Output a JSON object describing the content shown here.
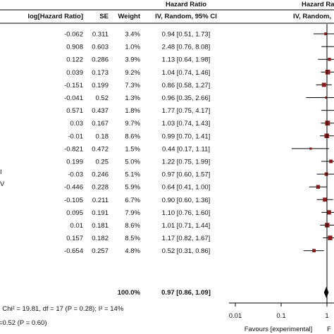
{
  "headers": {
    "loghr": "log[Hazard Ratio]",
    "se": "SE",
    "weight": "Weight",
    "hr_top": "Hazard Ratio",
    "hr_sub": "IV, Random, 95% CI",
    "plot_top": "Hazard Ra",
    "plot_sub": "IV, Random,"
  },
  "left_fragments": [
    "I",
    "V"
  ],
  "rows": [
    {
      "loghr": "-0.062",
      "se": "0.311",
      "weight": "3.4%",
      "hr": "0.94 [0.51, 1.73]"
    },
    {
      "loghr": "0.908",
      "se": "0.603",
      "weight": "1.0%",
      "hr": "2.48 [0.76, 8.08]"
    },
    {
      "loghr": "0.122",
      "se": "0.286",
      "weight": "3.9%",
      "hr": "1.13 [0.64, 1.98]"
    },
    {
      "loghr": "0.039",
      "se": "0.173",
      "weight": "9.2%",
      "hr": "1.04 [0.74, 1.46]"
    },
    {
      "loghr": "-0.151",
      "se": "0.199",
      "weight": "7.3%",
      "hr": "0.86 [0.58, 1.27]"
    },
    {
      "loghr": "-0.041",
      "se": "0.52",
      "weight": "1.3%",
      "hr": "0.96 [0.35, 2.66]"
    },
    {
      "loghr": "0.571",
      "se": "0.437",
      "weight": "1.8%",
      "hr": "1.77 [0.75, 4.17]"
    },
    {
      "loghr": "0.03",
      "se": "0.167",
      "weight": "9.7%",
      "hr": "1.03 [0.74, 1.43]"
    },
    {
      "loghr": "-0.01",
      "se": "0.18",
      "weight": "8.6%",
      "hr": "0.99 [0.70, 1.41]"
    },
    {
      "loghr": "-0.821",
      "se": "0.472",
      "weight": "1.5%",
      "hr": "0.44 [0.17, 1.11]"
    },
    {
      "loghr": "0.199",
      "se": "0.25",
      "weight": "5.0%",
      "hr": "1.22 [0.75, 1.99]"
    },
    {
      "loghr": "-0.03",
      "se": "0.246",
      "weight": "5.1%",
      "hr": "0.97 [0.60, 1.57]"
    },
    {
      "loghr": "-0.446",
      "se": "0.228",
      "weight": "5.9%",
      "hr": "0.64 [0.41, 1.00]"
    },
    {
      "loghr": "-0.105",
      "se": "0.211",
      "weight": "6.7%",
      "hr": "0.90 [0.60, 1.36]"
    },
    {
      "loghr": "0.095",
      "se": "0.191",
      "weight": "7.9%",
      "hr": "1.10 [0.76, 1.60]"
    },
    {
      "loghr": "0.01",
      "se": "0.181",
      "weight": "8.6%",
      "hr": "1.01 [0.71, 1.44]"
    },
    {
      "loghr": "0.157",
      "se": "0.182",
      "weight": "8.5%",
      "hr": "1.17 [0.82, 1.67]"
    },
    {
      "loghr": "-0.654",
      "se": "0.257",
      "weight": "4.8%",
      "hr": "0.52 [0.31, 0.86]"
    }
  ],
  "total": {
    "weight": "100.0%",
    "hr": "0.97 [0.86, 1.09]"
  },
  "heterogeneity": "; Chi² = 19.81, df = 17 (P = 0.28); I² = 14%",
  "overall_effect": "=0.52 (P = 0.60)",
  "axis_ticks": [
    "0.01",
    "0.1",
    "1"
  ],
  "favours_text": "Favours [experimental]",
  "favours_frag": "F",
  "colors": {
    "marker": "#8b1a1a",
    "line": "#000000"
  },
  "chart_data": {
    "type": "forest",
    "x_scale": "log",
    "xlim": [
      0.01,
      100
    ],
    "reference_line": 1,
    "studies": [
      {
        "hr": 0.94,
        "lower": 0.51,
        "upper": 1.73,
        "weight": 3.4
      },
      {
        "hr": 2.48,
        "lower": 0.76,
        "upper": 8.08,
        "weight": 1.0
      },
      {
        "hr": 1.13,
        "lower": 0.64,
        "upper": 1.98,
        "weight": 3.9
      },
      {
        "hr": 1.04,
        "lower": 0.74,
        "upper": 1.46,
        "weight": 9.2
      },
      {
        "hr": 0.86,
        "lower": 0.58,
        "upper": 1.27,
        "weight": 7.3
      },
      {
        "hr": 0.96,
        "lower": 0.35,
        "upper": 2.66,
        "weight": 1.3
      },
      {
        "hr": 1.77,
        "lower": 0.75,
        "upper": 4.17,
        "weight": 1.8
      },
      {
        "hr": 1.03,
        "lower": 0.74,
        "upper": 1.43,
        "weight": 9.7
      },
      {
        "hr": 0.99,
        "lower": 0.7,
        "upper": 1.41,
        "weight": 8.6
      },
      {
        "hr": 0.44,
        "lower": 0.17,
        "upper": 1.11,
        "weight": 1.5
      },
      {
        "hr": 1.22,
        "lower": 0.75,
        "upper": 1.99,
        "weight": 5.0
      },
      {
        "hr": 0.97,
        "lower": 0.6,
        "upper": 1.57,
        "weight": 5.1
      },
      {
        "hr": 0.64,
        "lower": 0.41,
        "upper": 1.0,
        "weight": 5.9
      },
      {
        "hr": 0.9,
        "lower": 0.6,
        "upper": 1.36,
        "weight": 6.7
      },
      {
        "hr": 1.1,
        "lower": 0.76,
        "upper": 1.6,
        "weight": 7.9
      },
      {
        "hr": 1.01,
        "lower": 0.71,
        "upper": 1.44,
        "weight": 8.6
      },
      {
        "hr": 1.17,
        "lower": 0.82,
        "upper": 1.67,
        "weight": 8.5
      },
      {
        "hr": 0.52,
        "lower": 0.31,
        "upper": 0.86,
        "weight": 4.8
      }
    ],
    "pooled": {
      "hr": 0.97,
      "lower": 0.86,
      "upper": 1.09
    }
  }
}
